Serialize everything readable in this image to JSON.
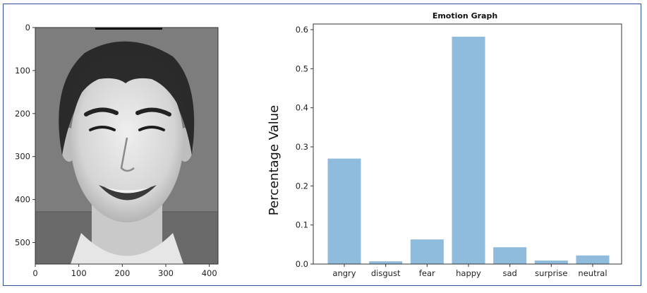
{
  "chart_data": [
    {
      "type": "image",
      "x_ticks": [
        "0",
        "100",
        "200",
        "300",
        "400"
      ],
      "y_ticks": [
        "0",
        "100",
        "200",
        "300",
        "400",
        "500"
      ],
      "xlim": [
        0,
        420
      ],
      "ylim": [
        550,
        0
      ],
      "image_extent": [
        0,
        420,
        0,
        550
      ],
      "colors": {
        "background": "#7d7d7d",
        "wall_lower": "#6a6a6a",
        "hair": "#2a2a2a",
        "skin": "#d8d8d8"
      }
    },
    {
      "type": "bar",
      "title": "Emotion Graph",
      "ylabel": "Percentage Value",
      "xlabel": "",
      "categories": [
        "angry",
        "disgust",
        "fear",
        "happy",
        "sad",
        "surprise",
        "neutral"
      ],
      "values": [
        0.27,
        0.007,
        0.063,
        0.582,
        0.043,
        0.009,
        0.022
      ],
      "ylim": [
        0,
        0.6
      ],
      "yticks": [
        0.0,
        0.1,
        0.2,
        0.3,
        0.4,
        0.5,
        0.6
      ],
      "ytick_labels": [
        "0.0",
        "0.1",
        "0.2",
        "0.3",
        "0.4",
        "0.5",
        "0.6"
      ],
      "grid": false,
      "colors": {
        "bar": "#8fbbdc"
      }
    }
  ]
}
